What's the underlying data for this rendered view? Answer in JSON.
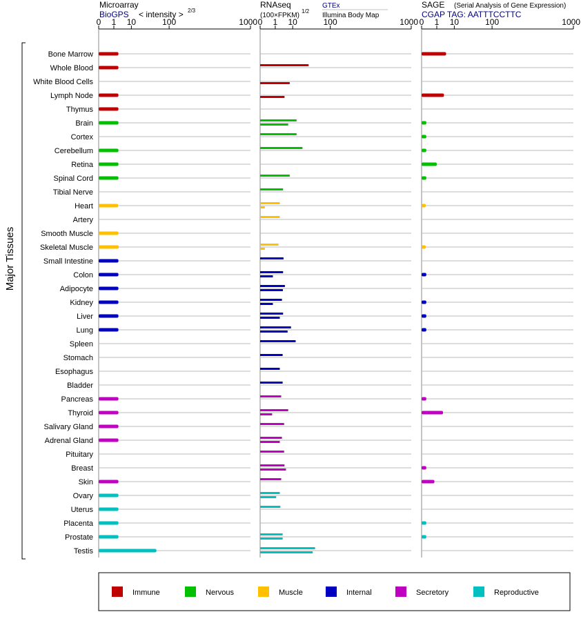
{
  "panels": {
    "microarray": {
      "title": "Microarray",
      "link": "BioGPS",
      "scale_label": "< intensity >",
      "scale_exp": "2/3",
      "ticks": [
        "0",
        "1",
        "10",
        "100",
        "1000"
      ]
    },
    "rnaseq": {
      "title": "RNAseq",
      "scale_label": "(100×FPKM)",
      "scale_exp": "1/2",
      "link1": "GTEx",
      "link2": "Illumina Body Map",
      "ticks": [
        "0",
        "1",
        "10",
        "100",
        "1000"
      ]
    },
    "sage": {
      "title": "SAGE",
      "subtitle": "(Serial Analysis of Gene Expression)",
      "link": "CGAP TAG: AATTTCCTTC",
      "ticks": [
        "0",
        "1",
        "10",
        "100",
        "1000"
      ]
    }
  },
  "y_axis_label": "Major Tissues",
  "categories": {
    "Immune": "#c00000",
    "Nervous": "#00c000",
    "Muscle": "#ffc000",
    "Internal": "#0000c0",
    "Secretory": "#c000c0",
    "Reproductive": "#00c0c0"
  },
  "legend": [
    "Immune",
    "Nervous",
    "Muscle",
    "Internal",
    "Secretory",
    "Reproductive"
  ],
  "chart_data": {
    "type": "bar",
    "x_scale": "power",
    "xlim": [
      0,
      1000
    ],
    "series": [
      {
        "name": "Microarray"
      },
      {
        "name": "RNAseq GTEx"
      },
      {
        "name": "RNAseq Illumina Body Map"
      },
      {
        "name": "SAGE"
      }
    ],
    "tissues": [
      {
        "name": "Bone Marrow",
        "cat": "Immune",
        "micro": 2.2,
        "gtex": null,
        "ibm": null,
        "sage": 4.2
      },
      {
        "name": "Whole Blood",
        "cat": "Immune",
        "micro": 2.2,
        "gtex": 33,
        "ibm": null,
        "sage": null
      },
      {
        "name": "White Blood Cells",
        "cat": "Immune",
        "micro": null,
        "gtex": null,
        "ibm": 7.5,
        "sage": null
      },
      {
        "name": "Lymph Node",
        "cat": "Immune",
        "micro": 2.2,
        "gtex": null,
        "ibm": 4.2,
        "sage": 3.2
      },
      {
        "name": "Thymus",
        "cat": "Immune",
        "micro": 2.2,
        "gtex": null,
        "ibm": null,
        "sage": null
      },
      {
        "name": "Brain",
        "cat": "Nervous",
        "micro": 2.2,
        "gtex": 14,
        "ibm": 6.4,
        "sage": 0.03
      },
      {
        "name": "Cortex",
        "cat": "Nervous",
        "micro": null,
        "gtex": 14,
        "ibm": null,
        "sage": 0.03
      },
      {
        "name": "Cerebellum",
        "cat": "Nervous",
        "micro": 2.2,
        "gtex": 22,
        "ibm": null,
        "sage": 0.03
      },
      {
        "name": "Retina",
        "cat": "Nervous",
        "micro": 2.2,
        "gtex": null,
        "ibm": null,
        "sage": 1.0
      },
      {
        "name": "Spinal Cord",
        "cat": "Nervous",
        "micro": 2.2,
        "gtex": 7.5,
        "ibm": null,
        "sage": 0.03
      },
      {
        "name": "Tibial Nerve",
        "cat": "Nervous",
        "micro": null,
        "gtex": 3.5,
        "ibm": null,
        "sage": null
      },
      {
        "name": "Heart",
        "cat": "Muscle",
        "micro": 2.1,
        "gtex": 2.2,
        "ibm": 0.03,
        "sage": 0.02
      },
      {
        "name": "Artery",
        "cat": "Muscle",
        "micro": null,
        "gtex": 2.2,
        "ibm": null,
        "sage": null
      },
      {
        "name": "Smooth Muscle",
        "cat": "Muscle",
        "micro": 2.2,
        "gtex": null,
        "ibm": null,
        "sage": null
      },
      {
        "name": "Skeletal Muscle",
        "cat": "Muscle",
        "micro": 2.3,
        "gtex": 1.8,
        "ibm": 0.03,
        "sage": 0.02
      },
      {
        "name": "Small Intestine",
        "cat": "Internal",
        "micro": 2.2,
        "gtex": 3.7,
        "ibm": null,
        "sage": null
      },
      {
        "name": "Colon",
        "cat": "Internal",
        "micro": 2.2,
        "gtex": 3.5,
        "ibm": 0.6,
        "sage": 0.03
      },
      {
        "name": "Adipocyte",
        "cat": "Internal",
        "micro": 2.2,
        "gtex": 4.4,
        "ibm": 3.4,
        "sage": null
      },
      {
        "name": "Kidney",
        "cat": "Internal",
        "micro": 2.2,
        "gtex": 3.0,
        "ibm": 0.6,
        "sage": 0.03
      },
      {
        "name": "Liver",
        "cat": "Internal",
        "micro": 2.2,
        "gtex": 3.5,
        "ibm": 2.2,
        "sage": 0.03
      },
      {
        "name": "Lung",
        "cat": "Internal",
        "micro": 2.2,
        "gtex": 8.5,
        "ibm": 6.0,
        "sage": 0.03
      },
      {
        "name": "Spleen",
        "cat": "Internal",
        "micro": null,
        "gtex": 13,
        "ibm": null,
        "sage": null
      },
      {
        "name": "Stomach",
        "cat": "Internal",
        "micro": null,
        "gtex": 3.3,
        "ibm": null,
        "sage": null
      },
      {
        "name": "Esophagus",
        "cat": "Internal",
        "micro": null,
        "gtex": 2.2,
        "ibm": null,
        "sage": null
      },
      {
        "name": "Bladder",
        "cat": "Internal",
        "micro": null,
        "gtex": 3.3,
        "ibm": null,
        "sage": null
      },
      {
        "name": "Pancreas",
        "cat": "Secretory",
        "micro": 2.2,
        "gtex": 2.7,
        "ibm": null,
        "sage": 0.03
      },
      {
        "name": "Thyroid",
        "cat": "Secretory",
        "micro": 2.2,
        "gtex": 6.4,
        "ibm": 0.5,
        "sage": 2.8
      },
      {
        "name": "Salivary Gland",
        "cat": "Secretory",
        "micro": 2.2,
        "gtex": 4.0,
        "ibm": null,
        "sage": null
      },
      {
        "name": "Adrenal Gland",
        "cat": "Secretory",
        "micro": 2.2,
        "gtex": 3.0,
        "ibm": 2.2,
        "sage": null
      },
      {
        "name": "Pituitary",
        "cat": "Secretory",
        "micro": null,
        "gtex": 4.0,
        "ibm": null,
        "sage": null
      },
      {
        "name": "Breast",
        "cat": "Secretory",
        "micro": null,
        "gtex": 4.2,
        "ibm": 5.0,
        "sage": 0.03
      },
      {
        "name": "Skin",
        "cat": "Secretory",
        "micro": 2.2,
        "gtex": 2.7,
        "ibm": null,
        "sage": 0.6
      },
      {
        "name": "Ovary",
        "cat": "Reproductive",
        "micro": 2.2,
        "gtex": 2.2,
        "ibm": 1.2,
        "sage": null
      },
      {
        "name": "Uterus",
        "cat": "Reproductive",
        "micro": 2.2,
        "gtex": 2.4,
        "ibm": null,
        "sage": null
      },
      {
        "name": "Placenta",
        "cat": "Reproductive",
        "micro": 2.2,
        "gtex": null,
        "ibm": null,
        "sage": 0.03
      },
      {
        "name": "Prostate",
        "cat": "Reproductive",
        "micro": 2.2,
        "gtex": 3.3,
        "ibm": 3.3,
        "sage": 0.03
      },
      {
        "name": "Testis",
        "cat": "Reproductive",
        "micro": 55,
        "gtex": 48,
        "ibm": 42,
        "sage": null
      }
    ]
  }
}
